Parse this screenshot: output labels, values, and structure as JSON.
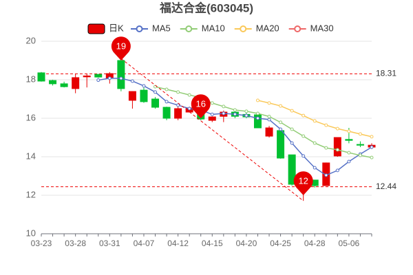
{
  "chart_data": {
    "type": "candlestick",
    "title": "福达合金(603045)",
    "candle_name": "日K",
    "up_color": "#e60000",
    "down_color": "#00c030",
    "categories": [
      "03-23",
      null,
      null,
      "03-28",
      null,
      null,
      "03-31",
      null,
      null,
      "04-07",
      null,
      null,
      "04-12",
      null,
      null,
      "04-15",
      null,
      null,
      "04-20",
      null,
      null,
      "04-25",
      null,
      null,
      "04-28",
      null,
      null,
      "05-06",
      null,
      null
    ],
    "open": [
      18.36,
      17.96,
      17.79,
      17.54,
      18.15,
      18.28,
      18.07,
      19.0,
      16.93,
      17.46,
      17.0,
      16.57,
      16.0,
      16.32,
      16.6,
      15.89,
      16.1,
      16.32,
      16.2,
      16.18,
      15.07,
      15.36,
      14.1,
      12.5,
      12.79,
      12.5,
      14.04,
      14.9,
      14.64,
      14.5
    ],
    "close": [
      17.93,
      17.79,
      17.64,
      18.11,
      18.2,
      18.14,
      18.32,
      17.54,
      17.39,
      16.86,
      16.57,
      16.0,
      16.5,
      16.54,
      15.96,
      16.07,
      16.32,
      16.1,
      16.07,
      15.5,
      15.5,
      13.93,
      12.57,
      12.7,
      12.5,
      13.68,
      15.0,
      14.85,
      14.6,
      14.6
    ],
    "high": [
      18.4,
      18.0,
      17.9,
      18.3,
      18.3,
      18.3,
      18.4,
      19.1,
      17.4,
      17.6,
      17.1,
      16.6,
      16.7,
      16.6,
      16.7,
      16.1,
      16.4,
      16.4,
      16.3,
      16.2,
      15.6,
      15.4,
      14.1,
      13.0,
      12.8,
      13.7,
      15.0,
      15.5,
      14.8,
      14.7
    ],
    "low": [
      17.9,
      17.7,
      17.6,
      17.3,
      17.6,
      18.1,
      17.8,
      17.4,
      16.5,
      16.8,
      16.5,
      15.9,
      15.9,
      16.3,
      15.9,
      15.8,
      15.8,
      16.0,
      16.0,
      15.5,
      15.0,
      13.9,
      12.5,
      11.71,
      12.4,
      12.5,
      14.0,
      14.7,
      14.5,
      14.4
    ],
    "series": [
      {
        "name": "MA5",
        "color": "#5470c6",
        "values": [
          null,
          null,
          null,
          null,
          null,
          17.98,
          18.08,
          18.07,
          17.93,
          17.68,
          17.36,
          16.86,
          16.68,
          16.5,
          16.43,
          16.2,
          16.25,
          16.21,
          16.14,
          16.0,
          15.93,
          15.43,
          14.71,
          14.04,
          13.43,
          13.04,
          13.29,
          13.75,
          14.14,
          14.5
        ]
      },
      {
        "name": "MA10",
        "color": "#91cc75",
        "values": [
          null,
          null,
          null,
          null,
          null,
          null,
          null,
          null,
          null,
          null,
          17.64,
          17.5,
          17.36,
          17.21,
          17.07,
          16.79,
          16.61,
          16.43,
          16.36,
          16.25,
          16.09,
          15.79,
          15.43,
          15.07,
          14.71,
          14.46,
          14.36,
          14.21,
          14.07,
          13.96
        ]
      },
      {
        "name": "MA20",
        "color": "#fac858",
        "values": [
          null,
          null,
          null,
          null,
          null,
          null,
          null,
          null,
          null,
          null,
          null,
          null,
          null,
          null,
          null,
          null,
          null,
          null,
          null,
          16.93,
          16.79,
          16.64,
          16.39,
          16.14,
          15.86,
          15.64,
          15.46,
          15.32,
          15.18,
          15.04
        ]
      },
      {
        "name": "MA30",
        "color": "#ee6666",
        "values": [
          null,
          null,
          null,
          null,
          null,
          null,
          null,
          null,
          null,
          null,
          null,
          null,
          null,
          null,
          null,
          null,
          null,
          null,
          null,
          null,
          null,
          null,
          null,
          null,
          null,
          null,
          null,
          null,
          null,
          null
        ]
      }
    ],
    "markers": [
      {
        "index": 7,
        "value": 19
      },
      {
        "index": 14,
        "value": 16
      },
      {
        "index": 23,
        "value": 12
      }
    ],
    "reference_lines": [
      18.31,
      12.44
    ],
    "ylim": [
      10,
      20
    ],
    "yticks": [
      10,
      12,
      14,
      16,
      18,
      20
    ],
    "grid": true
  }
}
